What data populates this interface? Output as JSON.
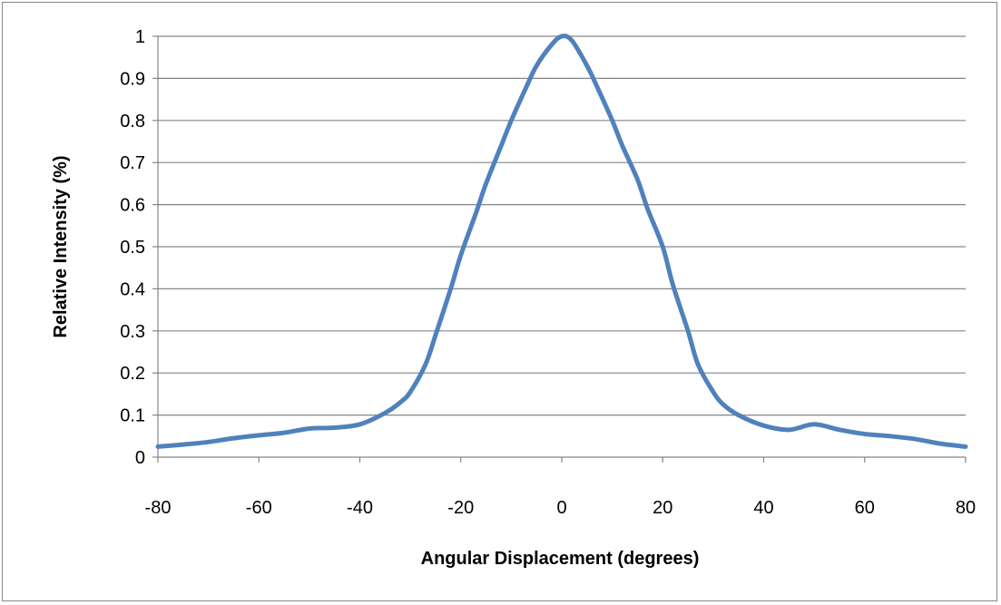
{
  "chart_data": {
    "type": "line",
    "title": "",
    "xlabel": "Angular Displacement  (degrees)",
    "ylabel": "Relative Intensity (%)",
    "xlim": [
      -80,
      80
    ],
    "ylim": [
      0,
      1
    ],
    "x_ticks": [
      -80,
      -60,
      -40,
      -20,
      0,
      20,
      40,
      60,
      80
    ],
    "y_ticks": [
      0,
      0.1,
      0.2,
      0.3,
      0.4,
      0.5,
      0.6,
      0.7,
      0.8,
      0.9,
      1
    ],
    "x_tick_labels": [
      "-80",
      "-60",
      "-40",
      "-20",
      "0",
      "20",
      "40",
      "60",
      "80"
    ],
    "y_tick_labels": [
      "0",
      "0.1",
      "0.2",
      "0.3",
      "0.4",
      "0.5",
      "0.6",
      "0.7",
      "0.8",
      "0.9",
      "1"
    ],
    "grid": {
      "horizontal": true,
      "vertical": false
    },
    "legend": "none",
    "colors": {
      "series": "#4f81bd",
      "grid": "#868686",
      "axis": "#868686",
      "frame": "#868686"
    },
    "series": [
      {
        "x": [
          -80,
          -75,
          -70,
          -65,
          -60,
          -55,
          -50,
          -45,
          -40,
          -35,
          -32,
          -30,
          -27,
          -25,
          -22,
          -20,
          -17,
          -15,
          -12,
          -10,
          -7,
          -5,
          -2,
          0,
          2,
          5,
          7,
          10,
          12,
          15,
          17,
          20,
          22,
          25,
          27,
          30,
          32,
          35,
          40,
          45,
          50,
          55,
          60,
          65,
          70,
          75,
          80
        ],
        "y": [
          0.025,
          0.03,
          0.036,
          0.045,
          0.052,
          0.058,
          0.068,
          0.07,
          0.078,
          0.105,
          0.13,
          0.155,
          0.22,
          0.29,
          0.4,
          0.48,
          0.58,
          0.65,
          0.74,
          0.8,
          0.88,
          0.93,
          0.98,
          1.0,
          0.99,
          0.93,
          0.88,
          0.8,
          0.74,
          0.66,
          0.59,
          0.5,
          0.41,
          0.3,
          0.22,
          0.155,
          0.125,
          0.1,
          0.075,
          0.065,
          0.078,
          0.065,
          0.055,
          0.05,
          0.043,
          0.032,
          0.025
        ]
      }
    ]
  }
}
